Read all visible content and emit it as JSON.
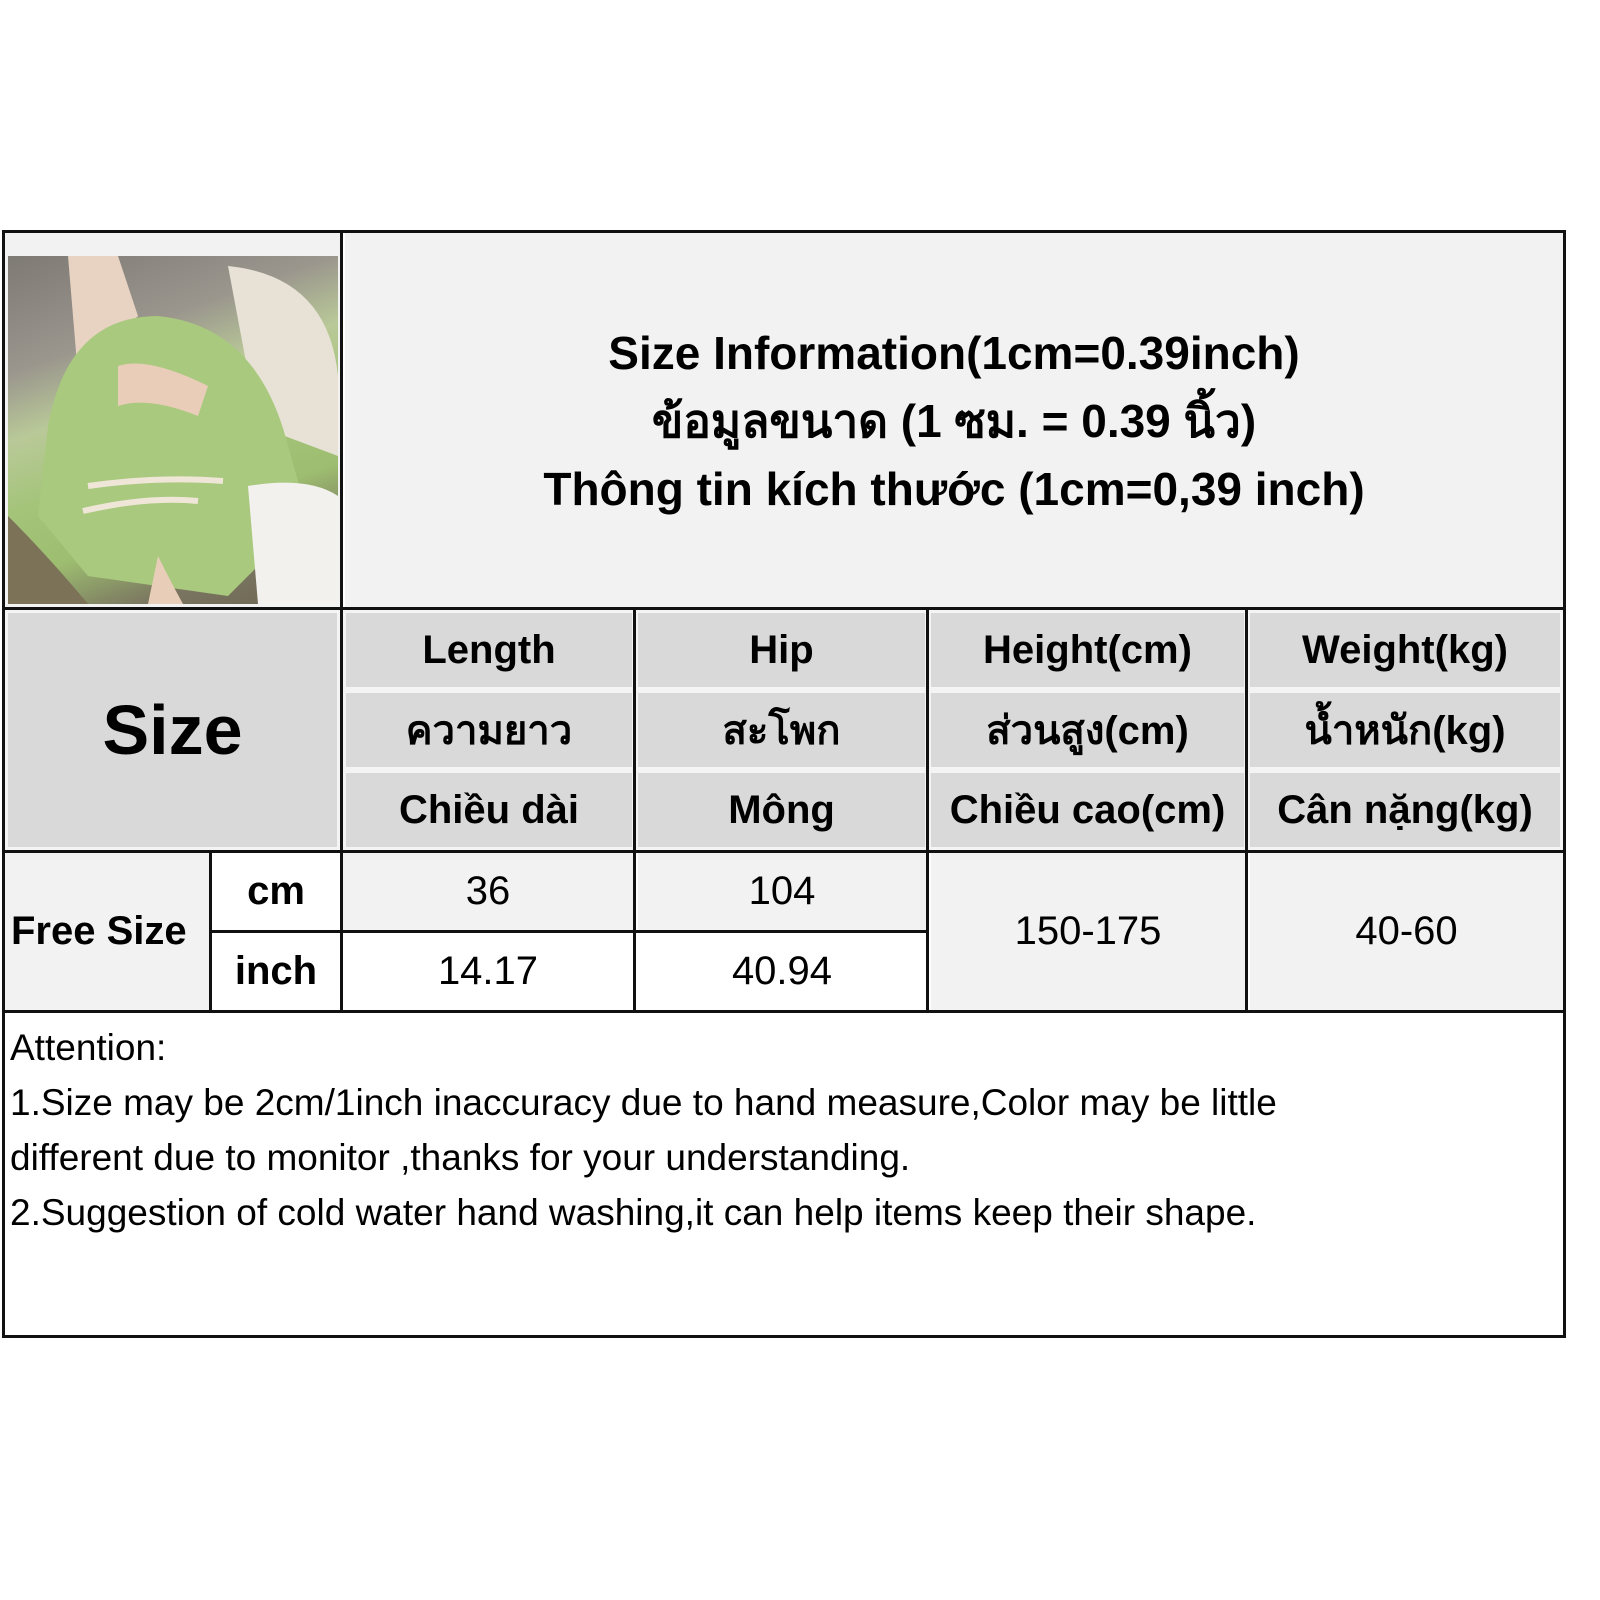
{
  "title_lines": [
    "Size Information(1cm=0.39inch)",
    "ข้อมูลขนาด (1 ซม. = 0.39 นิ้ว)",
    "Thông tin kích thước (1cm=0,39 inch)"
  ],
  "size_label": "Size",
  "columns": [
    {
      "en": "Length",
      "th": "ความยาว",
      "vi": "Chiều dài"
    },
    {
      "en": "Hip",
      "th": "สะโพก",
      "vi": "Mông"
    },
    {
      "en": "Height(cm)",
      "th": "ส่วนสูง(cm)",
      "vi": "Chiều cao(cm)"
    },
    {
      "en": "Weight(kg)",
      "th": "น้ำหนัก(kg)",
      "vi": "Cân nặng(kg)"
    }
  ],
  "rows": {
    "size_name": "Free Size",
    "cm": {
      "unit": "cm",
      "length": "36",
      "hip": "104"
    },
    "inch": {
      "unit": "inch",
      "length": "14.17",
      "hip": "40.94"
    },
    "height": "150-175",
    "weight": "40-60"
  },
  "attention": {
    "heading": "Attention:",
    "line1": "1.Size may be 2cm/1inch inaccuracy due to hand measure,Color may be little",
    "line1b": "different due to monitor ,thanks for your understanding.",
    "line2": "2.Suggestion of cold water hand washing,it can help items keep their shape."
  },
  "colors": {
    "header_bg": "#d9d9d9",
    "cell_bg": "#f2f2f2",
    "border": "#111111"
  }
}
